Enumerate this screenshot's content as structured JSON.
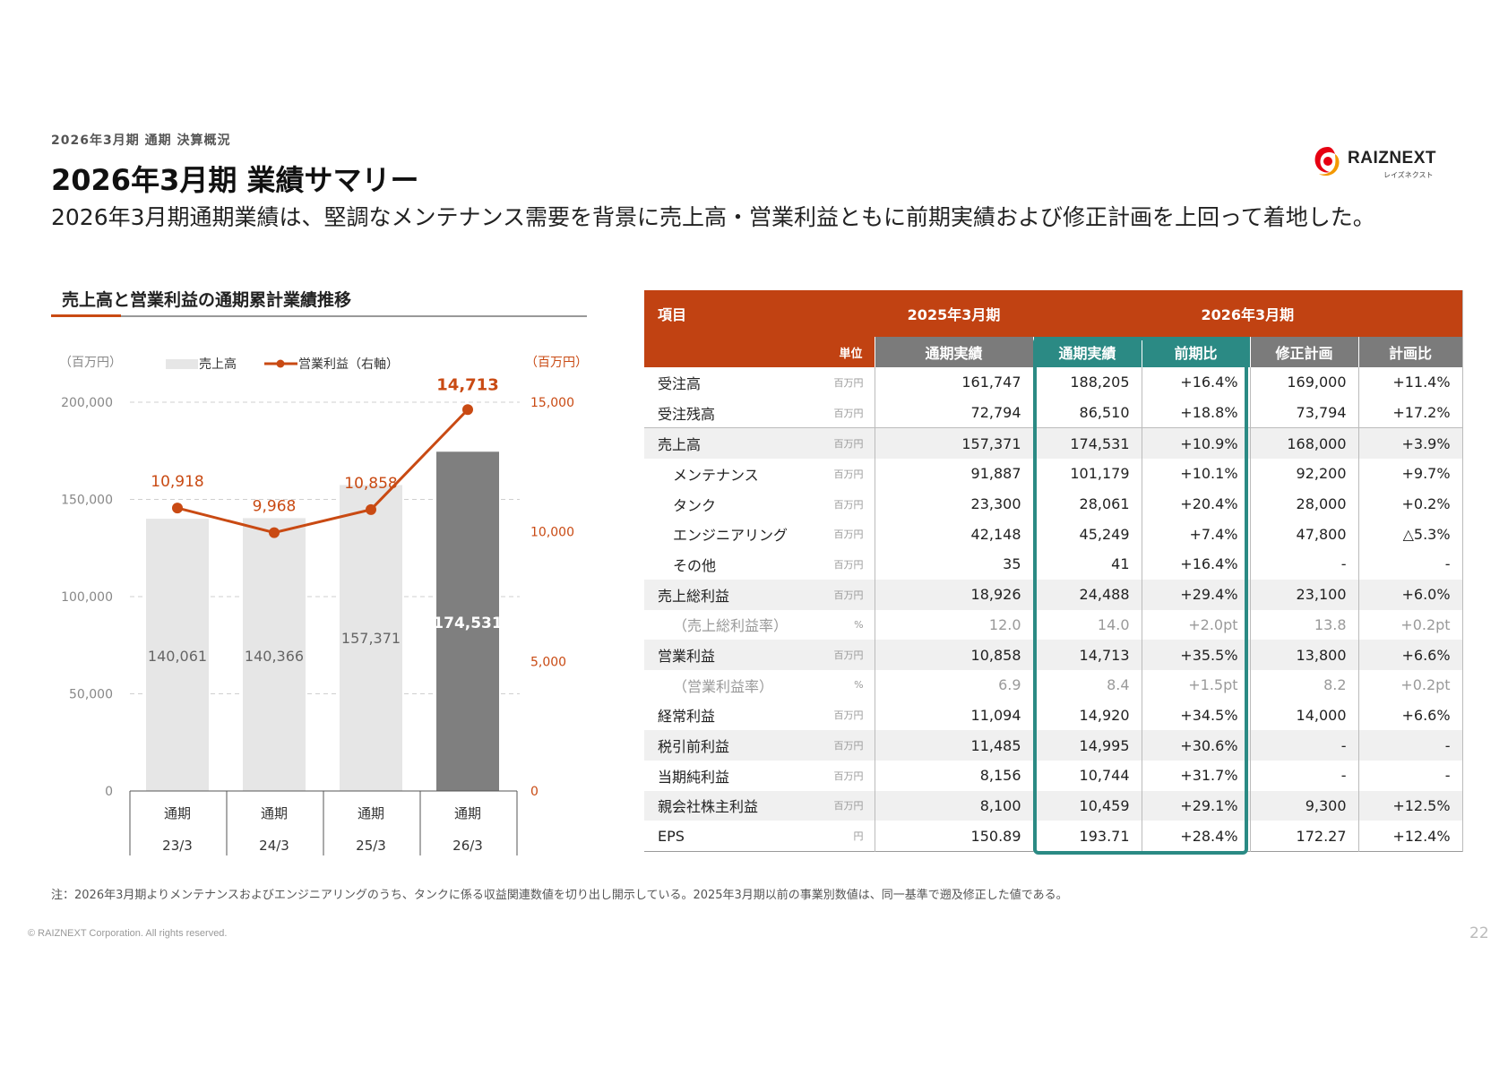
{
  "header": {
    "eyebrow": "2026年3月期 通期 決算概況",
    "title": "2026年3月期 業績サマリー",
    "subtitle": "2026年3月期通期業績は、堅調なメンテナンス需要を背景に売上高・営業利益ともに前期実績および修正計画を上回って着地した。"
  },
  "logo": {
    "name": "RAIZNEXT",
    "kana": "レイズネクスト",
    "icon": "raiznext-swirl-logo",
    "colors": [
      "#e60012",
      "#f39800"
    ]
  },
  "chart": {
    "title": "売上高と営業利益の通期累計業績推移",
    "left_unit": "（百万円）",
    "right_unit": "（百万円）",
    "legend": {
      "bar": "売上高",
      "line": "営業利益（右軸）"
    },
    "left_ticks": [
      "200,000",
      "150,000",
      "100,000",
      "50,000",
      "0"
    ],
    "right_ticks": [
      "15,000",
      "10,000",
      "5,000",
      "0"
    ],
    "x_labels": [
      {
        "top": "通期",
        "bottom": "23/3"
      },
      {
        "top": "通期",
        "bottom": "24/3"
      },
      {
        "top": "通期",
        "bottom": "25/3"
      },
      {
        "top": "通期",
        "bottom": "26/3"
      }
    ]
  },
  "chart_data": {
    "type": "bar",
    "categories": [
      "通期 23/3",
      "通期 24/3",
      "通期 25/3",
      "通期 26/3"
    ],
    "series": [
      {
        "name": "売上高",
        "type": "bar",
        "axis": "left",
        "values": [
          140061,
          140366,
          157371,
          174531
        ],
        "labels": [
          "140,061",
          "140,366",
          "157,371",
          "174,531"
        ],
        "colors": [
          "#e6e6e6",
          "#e6e6e6",
          "#e6e6e6",
          "#7f7f7f"
        ]
      },
      {
        "name": "営業利益（右軸）",
        "type": "line",
        "axis": "right",
        "values": [
          10918,
          9968,
          10858,
          14713
        ],
        "labels": [
          "10,918",
          "9,968",
          "10,858",
          "14,713"
        ],
        "color": "#c94a13"
      }
    ],
    "ylim_left": [
      0,
      200000
    ],
    "ylim_right": [
      0,
      15000
    ],
    "grid": true,
    "legend": "top"
  },
  "table": {
    "header1": {
      "item": "項目",
      "prev": "2025年3月期",
      "cur": "2026年3月期"
    },
    "header2": {
      "unit": "単位",
      "prev_actual": "通期実績",
      "cur_actual": "通期実績",
      "yoy": "前期比",
      "plan": "修正計画",
      "vs_plan": "計画比"
    },
    "rows": [
      {
        "name": "受注高",
        "unit": "百万円",
        "prev": "161,747",
        "cur": "188,205",
        "yoy": "+16.4%",
        "plan": "169,000",
        "vs": "+11.4%"
      },
      {
        "name": "受注残高",
        "unit": "百万円",
        "prev": "72,794",
        "cur": "86,510",
        "yoy": "+18.8%",
        "plan": "73,794",
        "vs": "+17.2%"
      },
      {
        "name": "売上高",
        "unit": "百万円",
        "prev": "157,371",
        "cur": "174,531",
        "yoy": "+10.9%",
        "plan": "168,000",
        "vs": "+3.9%"
      },
      {
        "name": "メンテナンス",
        "unit": "百万円",
        "prev": "91,887",
        "cur": "101,179",
        "yoy": "+10.1%",
        "plan": "92,200",
        "vs": "+9.7%"
      },
      {
        "name": "タンク",
        "unit": "百万円",
        "prev": "23,300",
        "cur": "28,061",
        "yoy": "+20.4%",
        "plan": "28,000",
        "vs": "+0.2%"
      },
      {
        "name": "エンジニアリング",
        "unit": "百万円",
        "prev": "42,148",
        "cur": "45,249",
        "yoy": "+7.4%",
        "plan": "47,800",
        "vs": "△5.3%"
      },
      {
        "name": "その他",
        "unit": "百万円",
        "prev": "35",
        "cur": "41",
        "yoy": "+16.4%",
        "plan": "-",
        "vs": "-"
      },
      {
        "name": "売上総利益",
        "unit": "百万円",
        "prev": "18,926",
        "cur": "24,488",
        "yoy": "+29.4%",
        "plan": "23,100",
        "vs": "+6.0%"
      },
      {
        "name": "（売上総利益率）",
        "unit": "%",
        "prev": "12.0",
        "cur": "14.0",
        "yoy": "+2.0pt",
        "plan": "13.8",
        "vs": "+0.2pt"
      },
      {
        "name": "営業利益",
        "unit": "百万円",
        "prev": "10,858",
        "cur": "14,713",
        "yoy": "+35.5%",
        "plan": "13,800",
        "vs": "+6.6%"
      },
      {
        "name": "（営業利益率）",
        "unit": "%",
        "prev": "6.9",
        "cur": "8.4",
        "yoy": "+1.5pt",
        "plan": "8.2",
        "vs": "+0.2pt"
      },
      {
        "name": "経常利益",
        "unit": "百万円",
        "prev": "11,094",
        "cur": "14,920",
        "yoy": "+34.5%",
        "plan": "14,000",
        "vs": "+6.6%"
      },
      {
        "name": "税引前利益",
        "unit": "百万円",
        "prev": "11,485",
        "cur": "14,995",
        "yoy": "+30.6%",
        "plan": "-",
        "vs": "-"
      },
      {
        "name": "当期純利益",
        "unit": "百万円",
        "prev": "8,156",
        "cur": "10,744",
        "yoy": "+31.7%",
        "plan": "-",
        "vs": "-"
      },
      {
        "name": "親会社株主利益",
        "unit": "百万円",
        "prev": "8,100",
        "cur": "10,459",
        "yoy": "+29.1%",
        "plan": "9,300",
        "vs": "+12.5%"
      },
      {
        "name": "EPS",
        "unit": "円",
        "prev": "150.89",
        "cur": "193.71",
        "yoy": "+28.4%",
        "plan": "172.27",
        "vs": "+12.4%"
      }
    ]
  },
  "note": "注：2026年3月期よりメンテナンスおよびエンジニアリングのうち、タンクに係る収益関連数値を切り出し開示している。2025年3月期以前の事業別数値は、同一基準で遡及修正した値である。",
  "footer": {
    "copyright": "© RAIZNEXT Corporation. All rights reserved.",
    "page": "22"
  },
  "colors": {
    "accent": "#c14212",
    "teal": "#2b8a84",
    "header_gray": "#7b7b7b"
  }
}
